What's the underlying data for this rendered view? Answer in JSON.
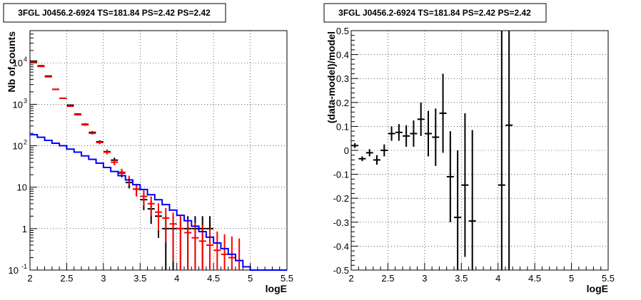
{
  "chart_data": [
    {
      "type": "line",
      "title": "3FGL J0456.2-6924 TS=181.84 PS=2.42 PS=2.42",
      "xlabel": "logE",
      "ylabel": "Nb of counts",
      "xlim": [
        2,
        5.5
      ],
      "ylim": [
        0.1,
        60000
      ],
      "yscale": "log",
      "grid": true,
      "x_ticks": [
        {
          "v": 2,
          "label": "2"
        },
        {
          "v": 2.5,
          "label": "2.5"
        },
        {
          "v": 3,
          "label": "3"
        },
        {
          "v": 3.5,
          "label": "3.5"
        },
        {
          "v": 4,
          "label": "4"
        },
        {
          "v": 4.5,
          "label": "4.5"
        },
        {
          "v": 5,
          "label": "5"
        },
        {
          "v": 5.5,
          "label": "5.5"
        }
      ],
      "y_ticks": [
        {
          "v": 0.1,
          "label": "10",
          "sup": "-1"
        },
        {
          "v": 1,
          "label": "1",
          "sup": ""
        },
        {
          "v": 10,
          "label": "10",
          "sup": ""
        },
        {
          "v": 100,
          "label": "10",
          "sup": "2"
        },
        {
          "v": 1000,
          "label": "10",
          "sup": "3"
        },
        {
          "v": 10000,
          "label": "10",
          "sup": "4"
        }
      ],
      "series": [
        {
          "kind": "errorbar",
          "color": "#000000",
          "points": [
            [
              2.05,
              11000,
              105
            ],
            [
              2.15,
              8500,
              92
            ],
            [
              2.25,
              4800,
              69
            ],
            [
              2.35,
              2300,
              48
            ],
            [
              2.45,
              1400,
              37
            ],
            [
              2.55,
              950,
              31
            ],
            [
              2.65,
              580,
              24
            ],
            [
              2.75,
              330,
              18
            ],
            [
              2.85,
              210,
              14.5
            ],
            [
              2.95,
              125,
              11
            ],
            [
              3.05,
              72,
              8.5
            ],
            [
              3.15,
              45,
              6.7
            ],
            [
              3.25,
              22,
              4.7
            ],
            [
              3.35,
              13,
              3.6
            ],
            [
              3.45,
              9,
              3
            ],
            [
              3.55,
              5,
              2.2
            ],
            [
              3.65,
              3,
              1.7
            ],
            [
              3.75,
              2,
              1.4
            ],
            [
              3.85,
              1,
              1
            ],
            [
              3.95,
              1,
              1
            ],
            [
              4.05,
              1,
              1
            ],
            [
              4.15,
              1,
              1
            ],
            [
              4.25,
              1,
              1
            ],
            [
              4.35,
              1,
              1
            ],
            [
              4.45,
              1,
              1
            ]
          ]
        },
        {
          "kind": "errorbar",
          "color": "#ff0000",
          "points": [
            [
              2.05,
              10500,
              102
            ],
            [
              2.15,
              8200,
              90
            ],
            [
              2.25,
              4600,
              68
            ],
            [
              2.35,
              2300,
              48
            ],
            [
              2.45,
              1400,
              37
            ],
            [
              2.55,
              900,
              30
            ],
            [
              2.65,
              560,
              24
            ],
            [
              2.75,
              320,
              18
            ],
            [
              2.85,
              200,
              14
            ],
            [
              2.95,
              120,
              11
            ],
            [
              3.05,
              70,
              8.4
            ],
            [
              3.15,
              40,
              6.3
            ],
            [
              3.25,
              23,
              4.8
            ],
            [
              3.35,
              15,
              3.9
            ],
            [
              3.45,
              9,
              3
            ],
            [
              3.55,
              6,
              2.4
            ],
            [
              3.65,
              4,
              2
            ],
            [
              3.75,
              2.5,
              1.6
            ],
            [
              3.85,
              1.8,
              1.34
            ],
            [
              3.95,
              1.3,
              1.14
            ],
            [
              4.05,
              1,
              1
            ],
            [
              4.15,
              0.8,
              0.89
            ],
            [
              4.25,
              0.6,
              0.77
            ],
            [
              4.35,
              0.5,
              0.71
            ],
            [
              4.45,
              0.4,
              0.63
            ],
            [
              4.55,
              0.3,
              0.55
            ],
            [
              4.65,
              0.24,
              0.49
            ],
            [
              4.75,
              0.2,
              0.45
            ],
            [
              4.85,
              0.17,
              0.41
            ]
          ]
        },
        {
          "kind": "step",
          "color": "#0000ff",
          "edges": [
            2.0,
            2.1,
            2.2,
            2.3,
            2.4,
            2.5,
            2.6,
            2.7,
            2.8,
            2.9,
            3.0,
            3.1,
            3.2,
            3.3,
            3.4,
            3.5,
            3.6,
            3.7,
            3.8,
            3.9,
            4.0,
            4.1,
            4.2,
            4.3,
            4.4,
            4.5,
            4.6,
            4.7,
            4.8,
            4.9,
            5.0,
            5.5
          ],
          "values": [
            185,
            160,
            135,
            115,
            100,
            83,
            70,
            57,
            47,
            38,
            30,
            24,
            19,
            15,
            11.5,
            8.8,
            6.6,
            5,
            3.8,
            2.8,
            2.1,
            1.55,
            1.15,
            0.85,
            0.62,
            0.45,
            0.33,
            0.24,
            0.17,
            0.12,
            0.1
          ]
        }
      ]
    },
    {
      "type": "scatter",
      "title": "3FGL J0456.2-6924 TS=181.84 PS=2.42 PS=2.42",
      "xlabel": "logE",
      "ylabel": "(data-model)/model",
      "xlim": [
        2,
        5.5
      ],
      "ylim": [
        -0.5,
        0.5
      ],
      "yscale": "linear",
      "grid": true,
      "x_ticks": [
        {
          "v": 2,
          "label": "2"
        },
        {
          "v": 2.5,
          "label": "2.5"
        },
        {
          "v": 3,
          "label": "3"
        },
        {
          "v": 3.5,
          "label": "3.5"
        },
        {
          "v": 4,
          "label": "4"
        },
        {
          "v": 4.5,
          "label": "4.5"
        },
        {
          "v": 5,
          "label": "5"
        },
        {
          "v": 5.5,
          "label": "5.5"
        }
      ],
      "y_ticks": [
        {
          "v": -0.5,
          "label": "-0.5"
        },
        {
          "v": -0.4,
          "label": "-0.4"
        },
        {
          "v": -0.3,
          "label": "-0.3"
        },
        {
          "v": -0.2,
          "label": "-0.2"
        },
        {
          "v": -0.1,
          "label": "-0.1"
        },
        {
          "v": 0,
          "label": "0"
        },
        {
          "v": 0.1,
          "label": "0.1"
        },
        {
          "v": 0.2,
          "label": "0.2"
        },
        {
          "v": 0.3,
          "label": "0.3"
        },
        {
          "v": 0.4,
          "label": "0.4"
        },
        {
          "v": 0.5,
          "label": "0.5"
        }
      ],
      "series": [
        {
          "kind": "errorbar",
          "color": "#000000",
          "points": [
            [
              2.05,
              0.02,
              0.01
            ],
            [
              2.15,
              -0.035,
              0.01
            ],
            [
              2.25,
              -0.01,
              0.015
            ],
            [
              2.35,
              -0.04,
              0.02
            ],
            [
              2.45,
              0.0,
              0.025
            ],
            [
              2.55,
              0.07,
              0.03
            ],
            [
              2.65,
              0.075,
              0.035
            ],
            [
              2.75,
              0.06,
              0.045
            ],
            [
              2.85,
              0.07,
              0.055
            ],
            [
              2.95,
              0.13,
              0.07
            ],
            [
              3.05,
              0.07,
              0.095
            ],
            [
              3.15,
              0.055,
              0.12
            ],
            [
              3.25,
              0.155,
              0.165
            ],
            [
              3.35,
              -0.11,
              0.19
            ],
            [
              3.45,
              -0.28,
              0.28
            ],
            [
              3.55,
              -0.145,
              0.3
            ],
            [
              3.65,
              -0.295,
              0.38
            ],
            [
              4.05,
              -0.145,
              0.8
            ],
            [
              4.15,
              0.105,
              0.8
            ]
          ]
        }
      ]
    }
  ]
}
